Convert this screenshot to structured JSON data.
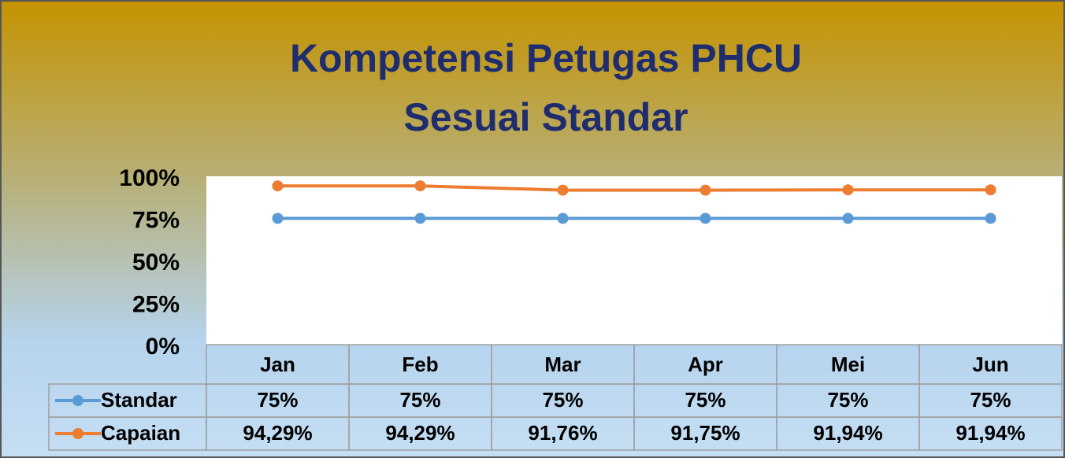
{
  "chart_data": {
    "type": "line",
    "title": [
      "Kompetensi Petugas PHCU",
      "Sesuai Standar"
    ],
    "categories": [
      "Jan",
      "Feb",
      "Mar",
      "Apr",
      "Mei",
      "Jun"
    ],
    "series": [
      {
        "name": "Standar",
        "color": "#5b9bd5",
        "values": [
          75,
          75,
          75,
          75,
          75,
          75
        ],
        "value_labels": [
          "75%",
          "75%",
          "75%",
          "75%",
          "75%",
          "75%"
        ]
      },
      {
        "name": "Capaian",
        "color": "#ed7d31",
        "values": [
          94.29,
          94.29,
          91.76,
          91.75,
          91.94,
          91.94
        ],
        "value_labels": [
          "94,29%",
          "94,29%",
          "91,76%",
          "91,75%",
          "91,94%",
          "91,94%"
        ]
      }
    ],
    "ylim": [
      0,
      100
    ],
    "yticks": [
      {
        "value": 0,
        "label": "0%"
      },
      {
        "value": 25,
        "label": "25%"
      },
      {
        "value": 50,
        "label": "50%"
      },
      {
        "value": 75,
        "label": "75%"
      },
      {
        "value": 100,
        "label": "100%"
      }
    ],
    "grid": false
  }
}
